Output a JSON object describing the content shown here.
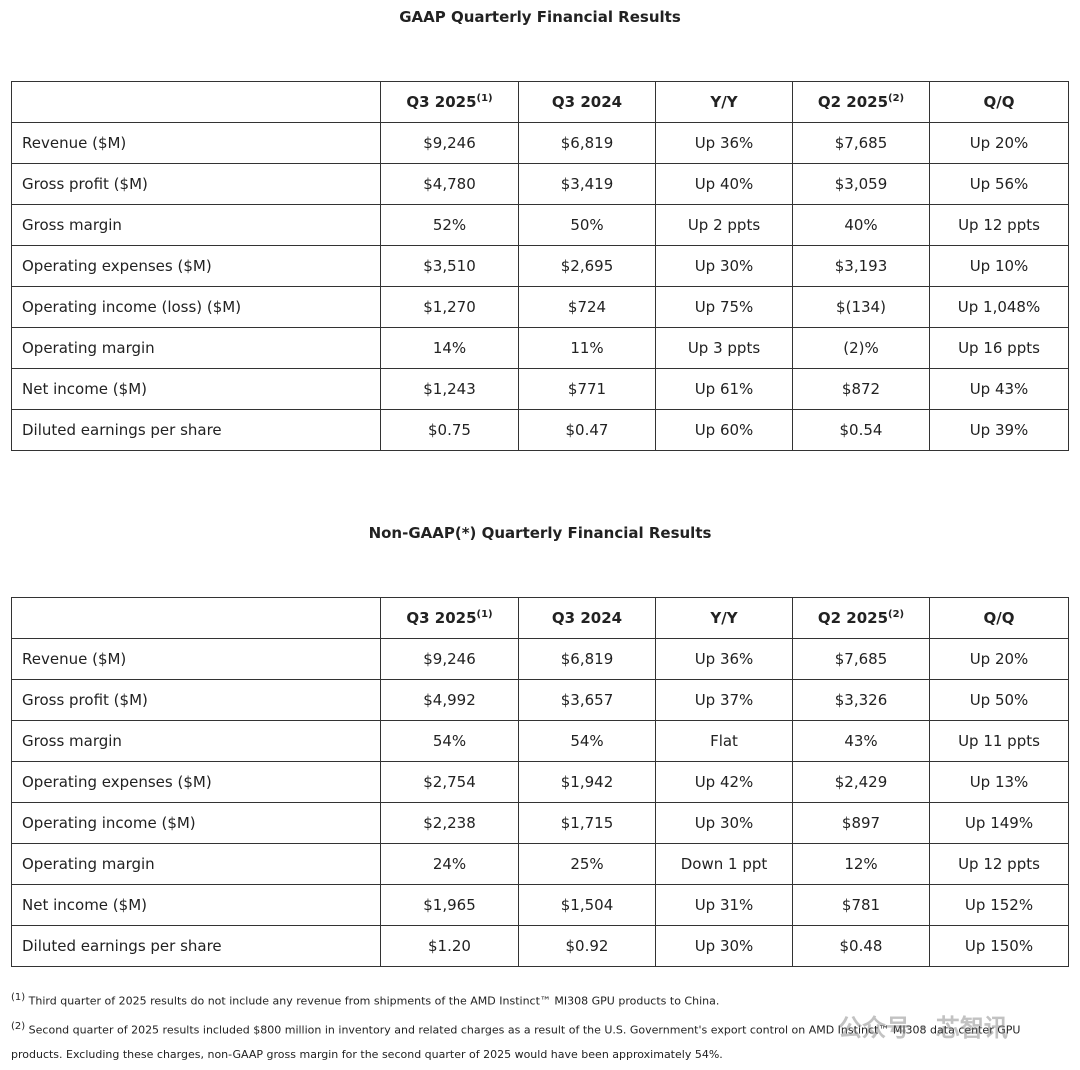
{
  "tables": [
    {
      "title": "GAAP Quarterly Financial Results",
      "header": [
        {
          "text": "Q3 2025",
          "note": "(1)"
        },
        {
          "text": "Q3 2024"
        },
        {
          "text": "Y/Y"
        },
        {
          "text": "Q2 2025",
          "note": "(2)"
        },
        {
          "text": "Q/Q"
        }
      ],
      "rows": [
        [
          "Revenue ($M)",
          "$9,246",
          "$6,819",
          "Up 36%",
          "$7,685",
          "Up 20%"
        ],
        [
          "Gross profit ($M)",
          "$4,780",
          "$3,419",
          "Up 40%",
          "$3,059",
          "Up 56%"
        ],
        [
          "Gross margin",
          "52%",
          "50%",
          "Up 2 ppts",
          "40%",
          "Up 12 ppts"
        ],
        [
          "Operating expenses ($M)",
          "$3,510",
          "$2,695",
          "Up 30%",
          "$3,193",
          "Up 10%"
        ],
        [
          "Operating income (loss) ($M)",
          "$1,270",
          "$724",
          "Up 75%",
          "$(134)",
          "Up 1,048%"
        ],
        [
          "Operating margin",
          "14%",
          "11%",
          "Up 3 ppts",
          "(2)%",
          "Up 16 ppts"
        ],
        [
          "Net income ($M)",
          "$1,243",
          "$771",
          "Up 61%",
          "$872",
          "Up 43%"
        ],
        [
          "Diluted earnings per share",
          "$0.75",
          "$0.47",
          "Up 60%",
          "$0.54",
          "Up 39%"
        ]
      ]
    },
    {
      "title": "Non-GAAP(*) Quarterly Financial Results",
      "header": [
        {
          "text": "Q3 2025",
          "note": "(1)"
        },
        {
          "text": "Q3 2024"
        },
        {
          "text": "Y/Y"
        },
        {
          "text": "Q2 2025",
          "note": "(2)"
        },
        {
          "text": "Q/Q"
        }
      ],
      "rows": [
        [
          "Revenue ($M)",
          "$9,246",
          "$6,819",
          "Up 36%",
          "$7,685",
          "Up 20%"
        ],
        [
          "Gross profit ($M)",
          "$4,992",
          "$3,657",
          "Up 37%",
          "$3,326",
          "Up 50%"
        ],
        [
          "Gross margin",
          "54%",
          "54%",
          "Flat",
          "43%",
          "Up 11 ppts"
        ],
        [
          "Operating expenses ($M)",
          "$2,754",
          "$1,942",
          "Up 42%",
          "$2,429",
          "Up 13%"
        ],
        [
          "Operating income ($M)",
          "$2,238",
          "$1,715",
          "Up 30%",
          "$897",
          "Up 149%"
        ],
        [
          "Operating margin",
          "24%",
          "25%",
          "Down 1 ppt",
          "12%",
          "Up 12 ppts"
        ],
        [
          "Net income ($M)",
          "$1,965",
          "$1,504",
          "Up 31%",
          "$781",
          "Up 152%"
        ],
        [
          "Diluted earnings per share",
          "$1.20",
          "$0.92",
          "Up 30%",
          "$0.48",
          "Up 150%"
        ]
      ]
    }
  ],
  "footnotes": [
    {
      "marker": "(1)",
      "text": "Third quarter of 2025 results do not include any revenue from shipments of the AMD Instinct™ MI308 GPU products to China."
    },
    {
      "marker": "(2)",
      "text": "Second quarter of 2025 results included $800 million in inventory and related charges as a result of the U.S. Government's export control on AMD Instinct™ MI308 data center GPU products. Excluding these charges, non-GAAP gross margin for the second quarter of 2025 would have been approximately 54%."
    }
  ],
  "watermark": "公众号 · 芯智讯"
}
